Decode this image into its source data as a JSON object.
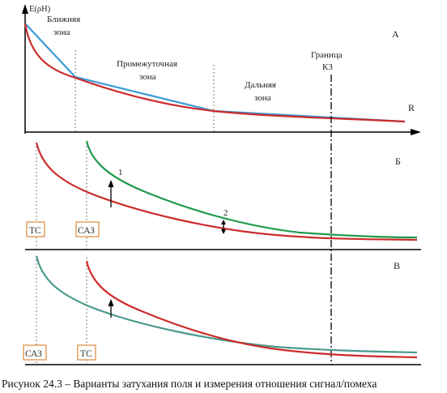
{
  "panel_a": {
    "y_axis_label": "E(ρH)",
    "x_axis_label": "R",
    "letter": "А",
    "zone_near_line1": "Ближняя",
    "zone_near_line2": "зона",
    "zone_mid_line1": "Промежуточная",
    "zone_mid_line2": "зона",
    "zone_far_line1": "Дальняя",
    "zone_far_line2": "зона",
    "boundary_line1": "Граница",
    "boundary_line2": "КЗ"
  },
  "panel_b": {
    "letter": "Б",
    "marker_1": "1",
    "marker_2": "2",
    "box_left": "ТС",
    "box_right": "САЗ"
  },
  "panel_c": {
    "letter": "В",
    "box_left": "САЗ",
    "box_right": "ТС"
  },
  "caption": "Рисунок 24.3 – Варианты затухания поля и измерения отношения сигнал/помеха",
  "colors": {
    "red": "#cc2a2a",
    "blue": "#3a9ad6",
    "green": "#1f9a4a",
    "teal": "#4a9a8c",
    "box_border": "#e0a060"
  }
}
